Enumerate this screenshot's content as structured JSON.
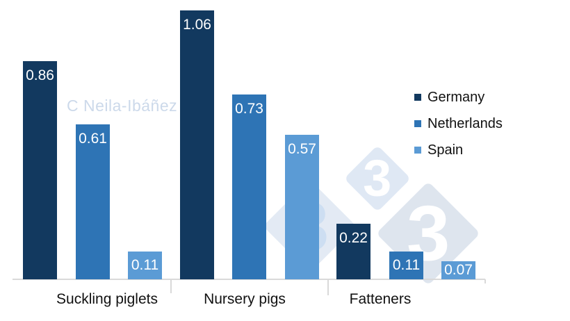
{
  "chart_data": {
    "type": "bar",
    "title": "",
    "xlabel": "",
    "ylabel": "",
    "categories": [
      "Suckling piglets",
      "Nursery pigs",
      "Fatteners"
    ],
    "series": [
      {
        "name": "Germany",
        "color": "#12395F",
        "values": [
          0.86,
          1.06,
          0.22
        ]
      },
      {
        "name": "Netherlands",
        "color": "#2E74B5",
        "values": [
          0.61,
          0.73,
          0.11
        ]
      },
      {
        "name": "Spain",
        "color": "#5B9BD5",
        "values": [
          0.11,
          0.57,
          0.07
        ]
      }
    ],
    "ylim": [
      0,
      1.1
    ],
    "grid": false,
    "axis_visible": "x-only",
    "legend_position": "right",
    "value_labels_position": "inside-top",
    "value_label_color": "#FFFFFF",
    "value_label_decimals": 2
  },
  "axis": {
    "line_color": "#D9D9D9"
  },
  "watermarks": {
    "author_credit": "C Neila-Ibáñez",
    "author_color": "#CCD9EA",
    "logo": {
      "digit": "3",
      "diamond_colors": [
        "#E3EAF4",
        "#DFE8F4",
        "#DEE5EE"
      ],
      "digit_colors": [
        "#CDDEF2",
        "#FFFFFF",
        "#FFFFFF"
      ]
    }
  }
}
